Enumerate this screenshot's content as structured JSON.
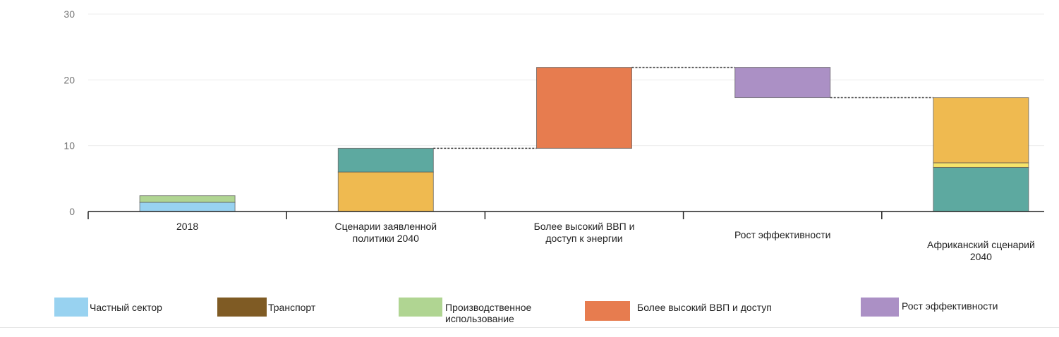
{
  "chart_data": {
    "type": "waterfall-stacked-bar",
    "ylim": [
      0,
      30
    ],
    "yticks": [
      0,
      10,
      20,
      30
    ],
    "grid": true,
    "categories": [
      "2018",
      "Сценарии заявленной политики 2040",
      "Более высокий ВВП и доступ к энергии",
      "Рост эффективности",
      "Африканский сценарий 2040"
    ],
    "category_lines": [
      [
        "2018"
      ],
      [
        "Сценарии заявленной",
        "политики 2040"
      ],
      [
        "Более высокий ВВП и",
        "доступ к энергии"
      ],
      [
        "Рост эффективности"
      ],
      [
        "Африканский сценарий",
        "2040"
      ]
    ],
    "segments": [
      {
        "category": 0,
        "from": 0,
        "to": 1.4,
        "color": "#98d2f0",
        "series": "Частный сектор"
      },
      {
        "category": 0,
        "from": 1.4,
        "to": 2.4,
        "color": "#b0d592",
        "series": "Производственное использование"
      },
      {
        "category": 1,
        "from": 0,
        "to": 6.0,
        "color": "#efba50",
        "series": ""
      },
      {
        "category": 1,
        "from": 6.0,
        "to": 9.6,
        "color": "#5da9a0",
        "series": ""
      },
      {
        "category": 2,
        "from": 9.6,
        "to": 21.9,
        "color": "#e77c4f",
        "series": "Более высокий ВВП и доступ"
      },
      {
        "category": 3,
        "from": 17.3,
        "to": 21.9,
        "color": "#ab90c5",
        "series": "Рост эффективности"
      },
      {
        "category": 4,
        "from": 0,
        "to": 6.7,
        "color": "#5da9a0",
        "series": ""
      },
      {
        "category": 4,
        "from": 6.7,
        "to": 7.4,
        "color": "#f6e46a",
        "series": ""
      },
      {
        "category": 4,
        "from": 7.4,
        "to": 17.3,
        "color": "#efba50",
        "series": ""
      }
    ],
    "connectors": [
      {
        "from": 1,
        "to": 2,
        "value": 9.6
      },
      {
        "from": 2,
        "to": 3,
        "value": 21.9
      },
      {
        "from": 3,
        "to": 4,
        "value": 17.3
      }
    ],
    "legend": [
      {
        "label": "Частный сектор",
        "color": "#98d2f0"
      },
      {
        "label": "Транспорт",
        "color": "#7f5b24"
      },
      {
        "label": "Производственное использование",
        "color": "#b0d592"
      },
      {
        "label": "Более высокий ВВП и доступ",
        "color": "#e77c4f"
      },
      {
        "label": "Рост эффективности",
        "color": "#ab90c5"
      }
    ],
    "legend_placement": "bottom"
  }
}
